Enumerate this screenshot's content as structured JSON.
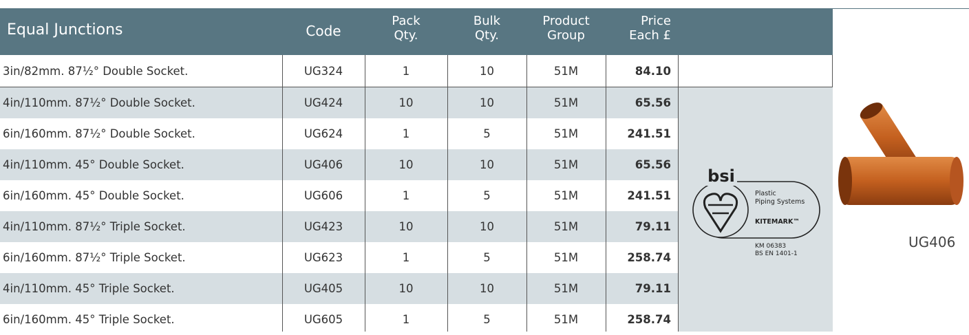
{
  "table": {
    "header": [
      "Equal Junctions",
      "Code",
      [
        "Pack",
        "Qty."
      ],
      [
        "Bulk",
        "Qty."
      ],
      [
        "Product",
        "Group"
      ],
      [
        "Price",
        "Each £"
      ]
    ],
    "rows": [
      [
        "3in/82mm. 87½° Double Socket.",
        "UG324",
        "1",
        "10",
        "51M",
        "84.10"
      ],
      [
        "4in/110mm. 87½° Double Socket.",
        "UG424",
        "10",
        "10",
        "51M",
        "65.56"
      ],
      [
        "6in/160mm. 87½° Double Socket.",
        "UG624",
        "1",
        "5",
        "51M",
        "241.51"
      ],
      [
        "4in/110mm. 45° Double Socket.",
        "UG406",
        "10",
        "10",
        "51M",
        "65.56"
      ],
      [
        "6in/160mm. 45° Double Socket.",
        "UG606",
        "1",
        "5",
        "51M",
        "241.51"
      ],
      [
        "4in/110mm. 87½° Triple Socket.",
        "UG423",
        "10",
        "10",
        "51M",
        "79.11"
      ],
      [
        "6in/160mm. 87½° Triple Socket.",
        "UG623",
        "1",
        "5",
        "51M",
        "258.74"
      ],
      [
        "4in/110mm. 45° Triple Socket.",
        "UG405",
        "10",
        "10",
        "51M",
        "79.11"
      ],
      [
        "6in/160mm. 45° Triple Socket.",
        "UG605",
        "1",
        "5",
        "51M",
        "258.74"
      ]
    ]
  },
  "certification": {
    "brand": "bsi",
    "lines": [
      "Plastic",
      "Piping Systems"
    ],
    "mark": "KITEMARK™",
    "notes": [
      "KM 06383",
      "BS EN 1401-1"
    ]
  },
  "product_image": {
    "caption": "UG406"
  }
}
